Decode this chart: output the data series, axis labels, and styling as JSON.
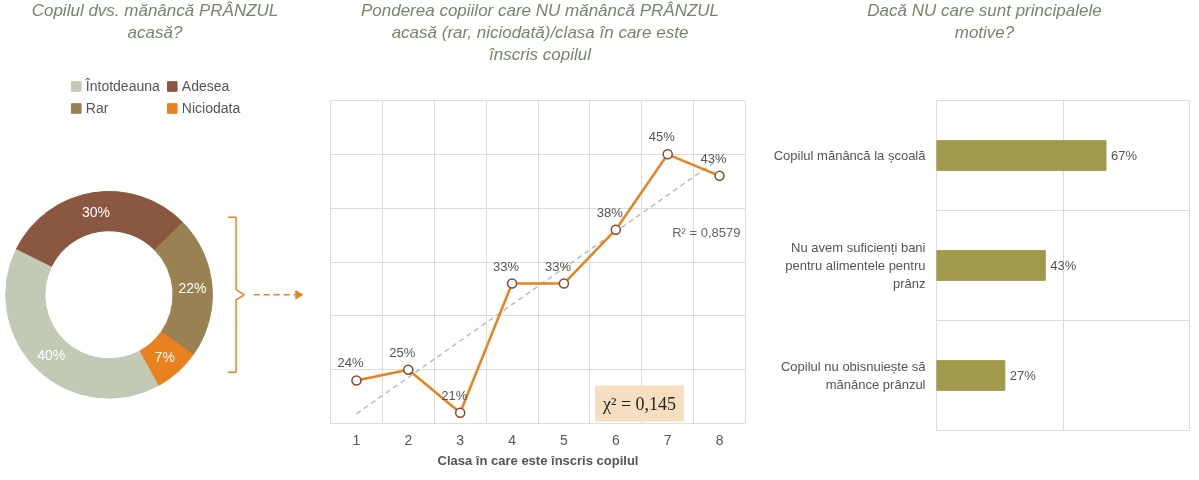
{
  "chart_data": [
    {
      "type": "donut",
      "title": "Copilul dvs. mănâncă PRÂNZUL acasă?",
      "categories": [
        "Întotdeauna",
        "Adesea",
        "Rar",
        "Niciodata"
      ],
      "values": [
        40,
        30,
        22,
        7
      ],
      "colors": [
        "#c2c9b4",
        "#8a5741",
        "#9a8152",
        "#e8821e"
      ],
      "value_labels": [
        "40%",
        "30%",
        "22%",
        "7%"
      ],
      "legend": "top"
    },
    {
      "type": "line",
      "title": "Ponderea copiilor care NU mănâncă PRÂNZUL acasă (rar, niciodată)/clasa în care este înscris copilul",
      "xlabel": "Clasa în care este înscris copilul",
      "categories": [
        "1",
        "2",
        "3",
        "4",
        "5",
        "6",
        "7",
        "8"
      ],
      "series": [
        {
          "color": "#e8821e",
          "values": [
            24,
            25,
            21,
            33,
            33,
            38,
            45,
            43
          ],
          "value_labels": [
            "24%",
            "25%",
            "21%",
            "33%",
            "33%",
            "38%",
            "45%",
            "43%"
          ],
          "marker": "circle",
          "line_style": "solid"
        },
        {
          "type": "line",
          "color": "#bbbbbb",
          "x": [
            "1",
            "8"
          ],
          "values": [
            20.9,
            44.6
          ],
          "marker": "none",
          "line_style": "dashed"
        }
      ],
      "ylim": [
        20,
        50
      ],
      "yticks": [
        {
          "value": 20,
          "label": null
        },
        {
          "value": 25,
          "label": null
        },
        {
          "value": 30,
          "label": null
        },
        {
          "value": 35,
          "label": null
        },
        {
          "value": 40,
          "label": null
        },
        {
          "value": 45,
          "label": null
        },
        {
          "value": 50,
          "label": null
        }
      ],
      "tick_labels": "x",
      "grid": true,
      "legend": false,
      "annotations": [
        "R² = 0,8579",
        "χ² = 0,145"
      ]
    },
    {
      "type": "bar",
      "orientation": "horizontal",
      "title": "Dacă NU care sunt principalele motive?",
      "categories": [
        "Copilul mănâncă la școală",
        "Nu avem suficienți bani pentru alimentele pentru prânz",
        "Copilul nu obisnuiește să mănânce prânzul"
      ],
      "values": [
        67,
        43,
        27
      ],
      "value_labels": [
        "67%",
        "43%",
        "27%"
      ],
      "color": "#a09a4a",
      "xlim": [
        0,
        100
      ],
      "xticks": [
        {
          "value": 0,
          "label": null
        },
        {
          "value": 50,
          "label": null
        },
        {
          "value": 100,
          "label": null
        }
      ],
      "tick_labels": "y",
      "grid": true,
      "legend": false
    }
  ]
}
